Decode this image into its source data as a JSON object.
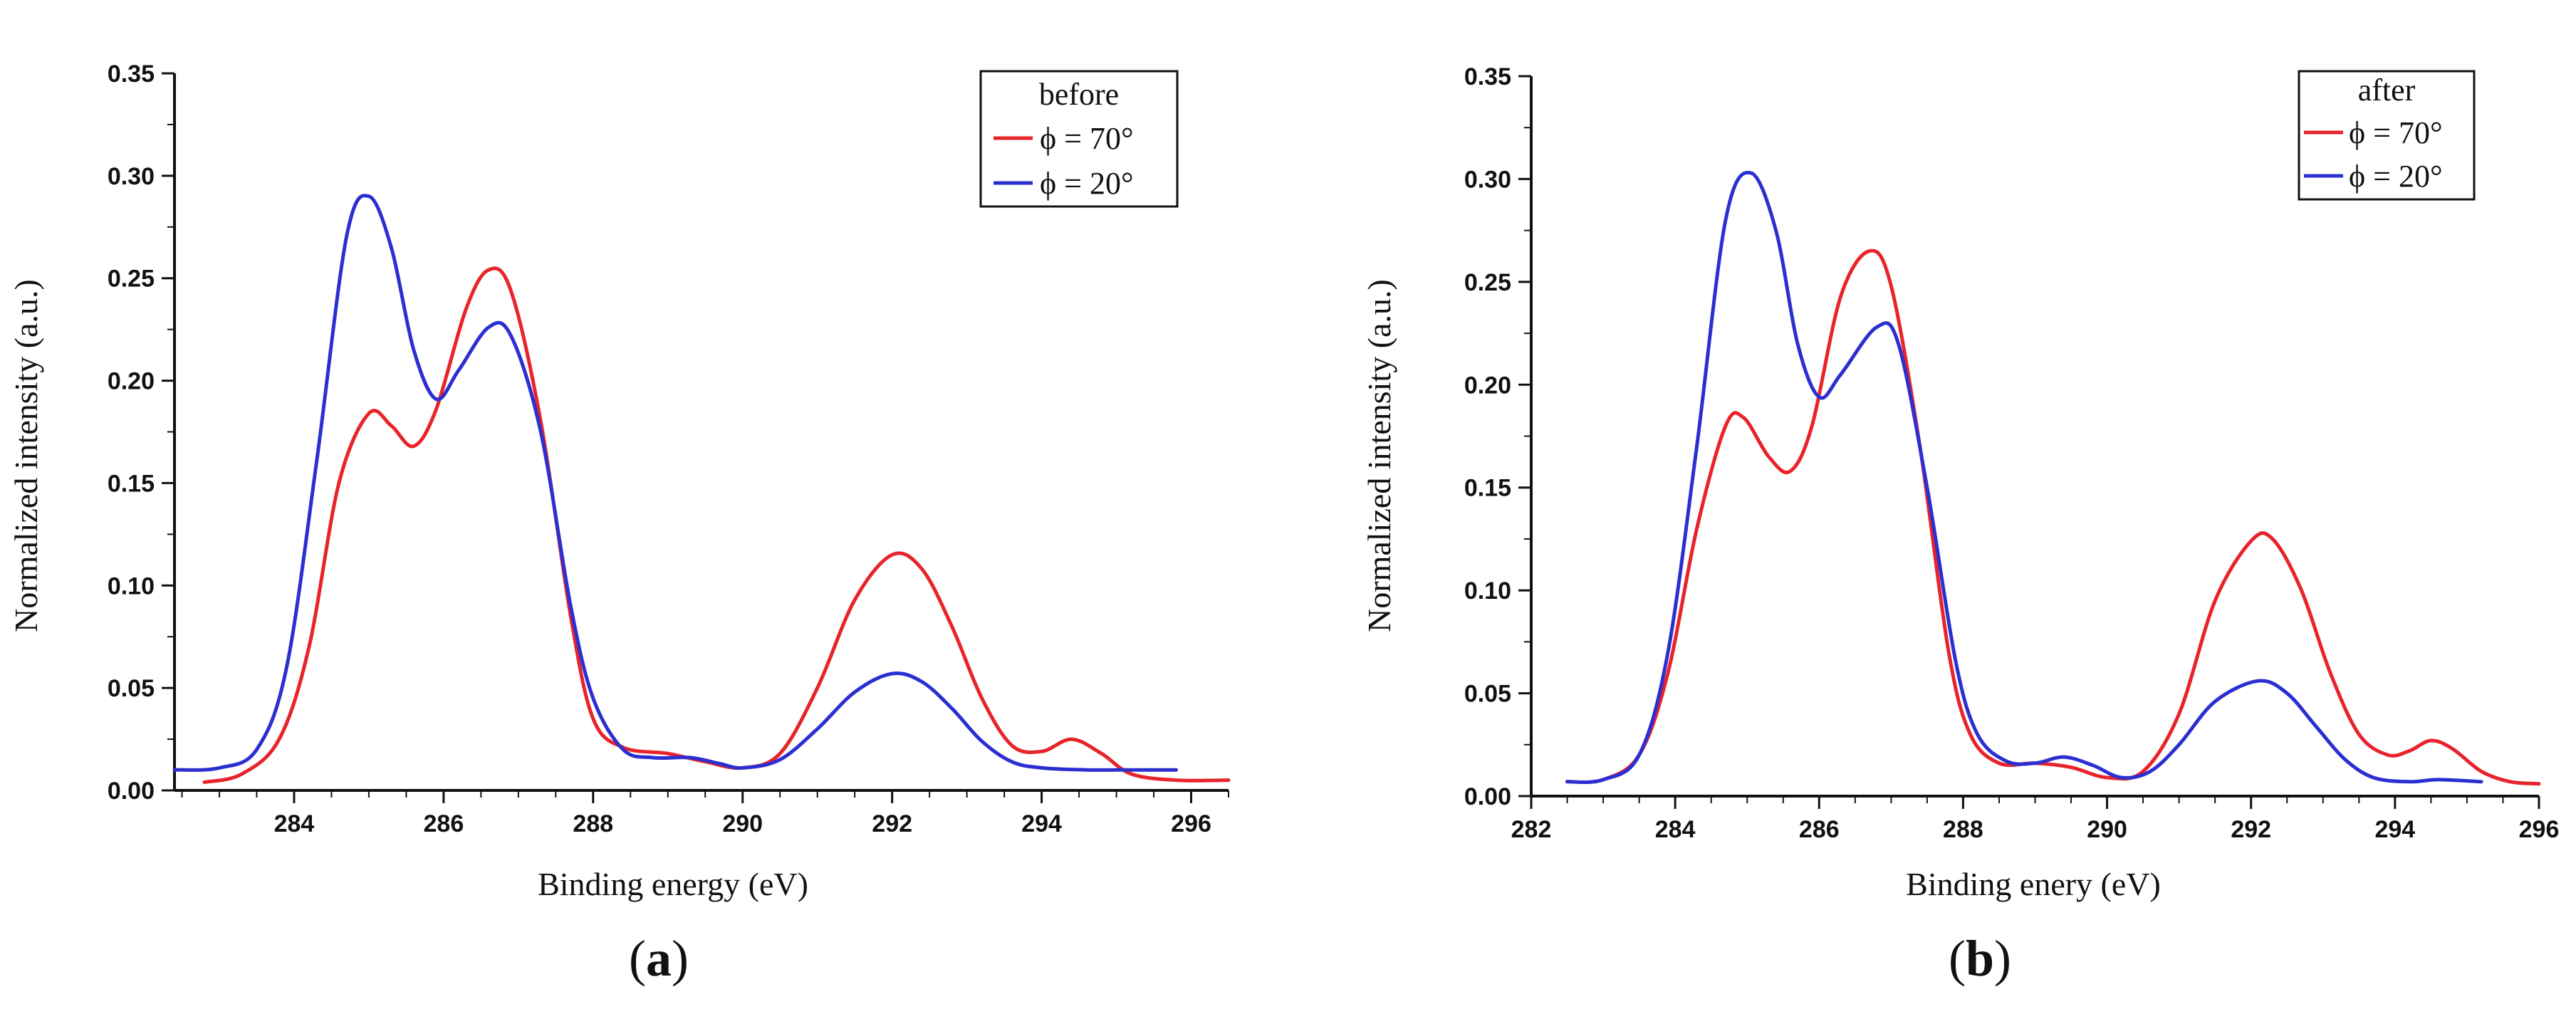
{
  "chart_data": [
    {
      "type": "line",
      "panel_label": "a",
      "legend_title": "before",
      "legend_position": "top-right",
      "xlabel": "Binding energy (eV)",
      "ylabel": "Normalized intensity (a.u.)",
      "xlim": [
        282.4,
        296.5
      ],
      "ylim": [
        0,
        0.35
      ],
      "xticks": [
        284,
        286,
        288,
        290,
        292,
        294,
        296
      ],
      "yticks": [
        "0.00",
        "0.05",
        "0.10",
        "0.15",
        "0.20",
        "0.25",
        "0.30",
        "0.35"
      ],
      "series": [
        {
          "name": "ϕ = 70°",
          "color": "#e8232a",
          "points": [
            [
              282.8,
              0.004
            ],
            [
              283.3,
              0.008
            ],
            [
              283.8,
              0.025
            ],
            [
              284.2,
              0.07
            ],
            [
              284.6,
              0.15
            ],
            [
              285.0,
              0.184
            ],
            [
              285.3,
              0.178
            ],
            [
              285.6,
              0.168
            ],
            [
              285.9,
              0.186
            ],
            [
              286.3,
              0.235
            ],
            [
              286.6,
              0.254
            ],
            [
              286.9,
              0.244
            ],
            [
              287.3,
              0.18
            ],
            [
              287.7,
              0.085
            ],
            [
              288.0,
              0.035
            ],
            [
              288.4,
              0.021
            ],
            [
              289.0,
              0.018
            ],
            [
              289.5,
              0.014
            ],
            [
              290.0,
              0.011
            ],
            [
              290.5,
              0.018
            ],
            [
              291.0,
              0.05
            ],
            [
              291.5,
              0.093
            ],
            [
              292.0,
              0.115
            ],
            [
              292.4,
              0.108
            ],
            [
              292.8,
              0.08
            ],
            [
              293.2,
              0.045
            ],
            [
              293.6,
              0.022
            ],
            [
              294.0,
              0.019
            ],
            [
              294.4,
              0.025
            ],
            [
              294.8,
              0.018
            ],
            [
              295.2,
              0.008
            ],
            [
              295.8,
              0.005
            ],
            [
              296.5,
              0.005
            ]
          ]
        },
        {
          "name": "ϕ = 20°",
          "color": "#2b2fd1",
          "points": [
            [
              282.4,
              0.01
            ],
            [
              283.0,
              0.011
            ],
            [
              283.5,
              0.02
            ],
            [
              283.9,
              0.06
            ],
            [
              284.3,
              0.16
            ],
            [
              284.7,
              0.27
            ],
            [
              285.0,
              0.29
            ],
            [
              285.3,
              0.265
            ],
            [
              285.6,
              0.215
            ],
            [
              285.9,
              0.191
            ],
            [
              286.2,
              0.205
            ],
            [
              286.6,
              0.226
            ],
            [
              286.9,
              0.222
            ],
            [
              287.3,
              0.175
            ],
            [
              287.7,
              0.09
            ],
            [
              288.0,
              0.045
            ],
            [
              288.4,
              0.02
            ],
            [
              288.8,
              0.016
            ],
            [
              289.3,
              0.016
            ],
            [
              289.7,
              0.013
            ],
            [
              290.0,
              0.011
            ],
            [
              290.5,
              0.015
            ],
            [
              291.0,
              0.03
            ],
            [
              291.5,
              0.048
            ],
            [
              292.0,
              0.057
            ],
            [
              292.4,
              0.053
            ],
            [
              292.8,
              0.04
            ],
            [
              293.2,
              0.024
            ],
            [
              293.6,
              0.014
            ],
            [
              294.0,
              0.011
            ],
            [
              294.6,
              0.01
            ],
            [
              295.2,
              0.01
            ],
            [
              295.8,
              0.01
            ]
          ]
        }
      ]
    },
    {
      "type": "line",
      "panel_label": "b",
      "legend_title": "after",
      "legend_position": "top-right",
      "xlabel": "Binding enery (eV)",
      "ylabel": "Normalized intensity (a.u.)",
      "xlim": [
        282,
        296
      ],
      "ylim": [
        0,
        0.35
      ],
      "xticks": [
        282,
        284,
        286,
        288,
        290,
        292,
        294,
        296
      ],
      "yticks": [
        "0.00",
        "0.05",
        "0.10",
        "0.15",
        "0.20",
        "0.25",
        "0.30",
        "0.35"
      ],
      "series": [
        {
          "name": "ϕ = 70°",
          "color": "#e8232a",
          "points": [
            [
              282.5,
              0.007
            ],
            [
              283.0,
              0.008
            ],
            [
              283.5,
              0.02
            ],
            [
              283.9,
              0.06
            ],
            [
              284.3,
              0.13
            ],
            [
              284.7,
              0.18
            ],
            [
              284.95,
              0.184
            ],
            [
              285.3,
              0.165
            ],
            [
              285.6,
              0.158
            ],
            [
              285.9,
              0.18
            ],
            [
              286.3,
              0.243
            ],
            [
              286.7,
              0.265
            ],
            [
              287.0,
              0.248
            ],
            [
              287.4,
              0.17
            ],
            [
              287.8,
              0.07
            ],
            [
              288.1,
              0.03
            ],
            [
              288.5,
              0.016
            ],
            [
              289.0,
              0.016
            ],
            [
              289.5,
              0.014
            ],
            [
              290.0,
              0.009
            ],
            [
              290.5,
              0.012
            ],
            [
              291.0,
              0.04
            ],
            [
              291.5,
              0.095
            ],
            [
              292.0,
              0.124
            ],
            [
              292.3,
              0.125
            ],
            [
              292.7,
              0.1
            ],
            [
              293.1,
              0.06
            ],
            [
              293.5,
              0.03
            ],
            [
              293.9,
              0.02
            ],
            [
              294.2,
              0.022
            ],
            [
              294.5,
              0.027
            ],
            [
              294.8,
              0.023
            ],
            [
              295.2,
              0.012
            ],
            [
              295.6,
              0.007
            ],
            [
              296.0,
              0.006
            ]
          ]
        },
        {
          "name": "ϕ = 20°",
          "color": "#2b2fd1",
          "points": [
            [
              282.5,
              0.007
            ],
            [
              283.0,
              0.008
            ],
            [
              283.5,
              0.02
            ],
            [
              283.9,
              0.07
            ],
            [
              284.3,
              0.17
            ],
            [
              284.7,
              0.28
            ],
            [
              285.05,
              0.303
            ],
            [
              285.4,
              0.275
            ],
            [
              285.7,
              0.22
            ],
            [
              286.0,
              0.194
            ],
            [
              286.3,
              0.205
            ],
            [
              286.8,
              0.228
            ],
            [
              287.1,
              0.22
            ],
            [
              287.5,
              0.15
            ],
            [
              287.9,
              0.065
            ],
            [
              288.2,
              0.03
            ],
            [
              288.6,
              0.017
            ],
            [
              289.0,
              0.016
            ],
            [
              289.4,
              0.019
            ],
            [
              289.8,
              0.015
            ],
            [
              290.2,
              0.009
            ],
            [
              290.6,
              0.012
            ],
            [
              291.0,
              0.025
            ],
            [
              291.5,
              0.046
            ],
            [
              292.1,
              0.056
            ],
            [
              292.5,
              0.05
            ],
            [
              292.9,
              0.034
            ],
            [
              293.3,
              0.018
            ],
            [
              293.7,
              0.009
            ],
            [
              294.2,
              0.007
            ],
            [
              294.6,
              0.008
            ],
            [
              295.2,
              0.007
            ]
          ]
        }
      ]
    }
  ]
}
